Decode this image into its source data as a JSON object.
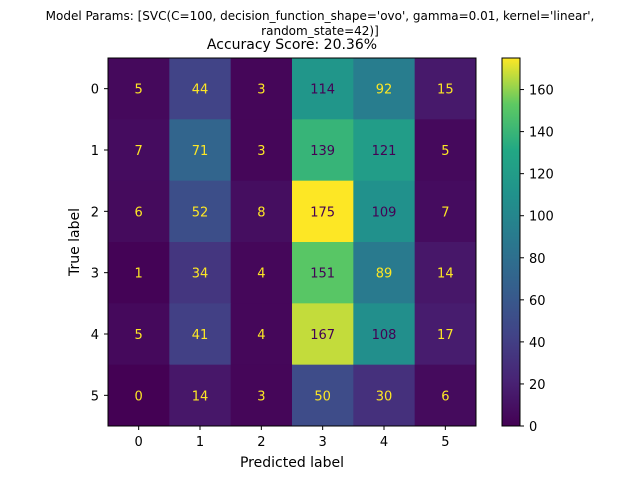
{
  "chart_data": {
    "type": "heatmap",
    "suptitle_lines": [
      "Model Params: [SVC(C=100, decision_function_shape='ovo', gamma=0.01, kernel='linear',",
      "random_state=42)]"
    ],
    "title": "Accuracy Score: 20.36%",
    "xlabel": "Predicted label",
    "ylabel": "True label",
    "x_categories": [
      "0",
      "1",
      "2",
      "3",
      "4",
      "5"
    ],
    "y_categories": [
      "0",
      "1",
      "2",
      "3",
      "4",
      "5"
    ],
    "matrix": [
      [
        5,
        44,
        3,
        114,
        92,
        15
      ],
      [
        7,
        71,
        3,
        139,
        121,
        5
      ],
      [
        6,
        52,
        8,
        175,
        109,
        7
      ],
      [
        1,
        34,
        4,
        151,
        89,
        14
      ],
      [
        5,
        41,
        4,
        167,
        108,
        17
      ],
      [
        0,
        14,
        3,
        50,
        30,
        6
      ]
    ],
    "colormap": "viridis",
    "vmin": 0,
    "vmax": 175,
    "colorbar_ticks": [
      0,
      20,
      40,
      60,
      80,
      100,
      120,
      140,
      160
    ],
    "text_color_light": "#fde725",
    "text_color_dark": "#440154"
  }
}
